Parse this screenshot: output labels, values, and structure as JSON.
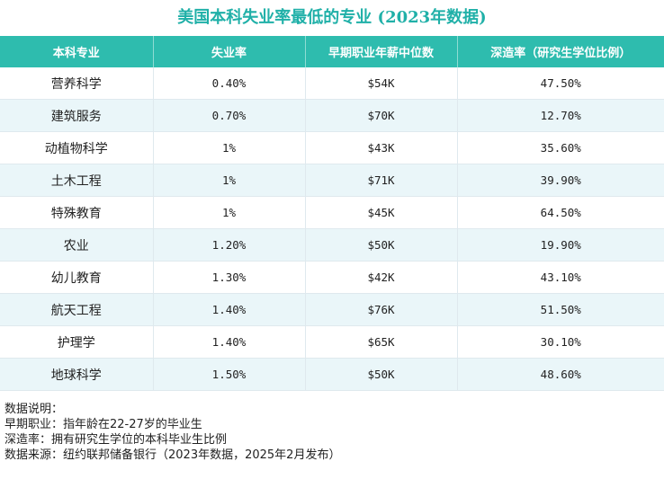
{
  "title": "美国本科失业率最低的专业 (2023年数据)",
  "table": {
    "headers": [
      "本科专业",
      "失业率",
      "早期职业年薪中位数",
      "深造率（研究生学位比例）"
    ],
    "rows": [
      [
        "营养科学",
        "0.40%",
        "$54K",
        "47.50%"
      ],
      [
        "建筑服务",
        "0.70%",
        "$70K",
        "12.70%"
      ],
      [
        "动植物科学",
        "1%",
        "$43K",
        "35.60%"
      ],
      [
        "土木工程",
        "1%",
        "$71K",
        "39.90%"
      ],
      [
        "特殊教育",
        "1%",
        "$45K",
        "64.50%"
      ],
      [
        "农业",
        "1.20%",
        "$50K",
        "19.90%"
      ],
      [
        "幼儿教育",
        "1.30%",
        "$42K",
        "43.10%"
      ],
      [
        "航天工程",
        "1.40%",
        "$76K",
        "51.50%"
      ],
      [
        "护理学",
        "1.40%",
        "$65K",
        "30.10%"
      ],
      [
        "地球科学",
        "1.50%",
        "$50K",
        "48.60%"
      ]
    ]
  },
  "notes": [
    "数据说明：",
    "早期职业：指年龄在22-27岁的毕业生",
    "深造率：拥有研究生学位的本科毕业生比例",
    "数据来源：纽约联邦储备银行（2023年数据，2025年2月发布）"
  ],
  "colors": {
    "title": "#20b0a8",
    "header_bg": "#2ebcae",
    "row_alt_bg": "#eaf6f9"
  }
}
